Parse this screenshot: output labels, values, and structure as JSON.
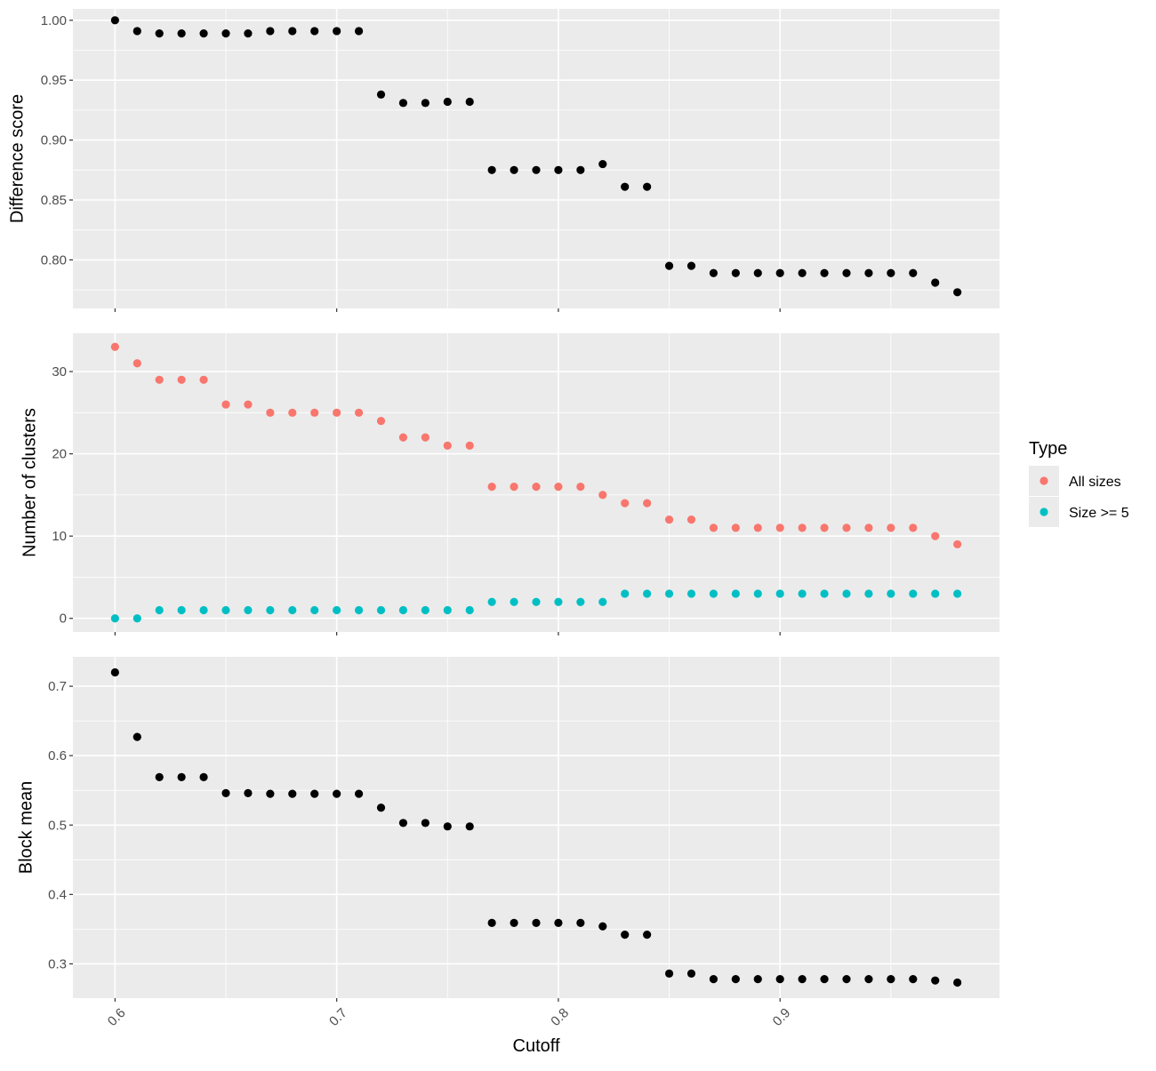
{
  "chart_data": {
    "type": "scatter",
    "xlabel": "Cutoff",
    "x_ticks": [
      "0.6",
      "0.7",
      "0.8",
      "0.9"
    ],
    "x_tick_values": [
      0.6,
      0.7,
      0.8,
      0.9
    ],
    "xlim": [
      0.581,
      0.999
    ],
    "grid": true,
    "legend": {
      "title": "Type",
      "placement": "right",
      "entries": [
        {
          "label": "All sizes",
          "color": "#F8766D"
        },
        {
          "label": "Size >= 5",
          "color": "#00BFC4"
        }
      ]
    },
    "panels": [
      {
        "ylabel": "Difference score",
        "ylim": [
          0.7595,
          1.0095
        ],
        "y_ticks": [
          "0.80",
          "0.85",
          "0.90",
          "0.95",
          "1.00"
        ],
        "y_tick_values": [
          0.8,
          0.85,
          0.9,
          0.95,
          1.0
        ],
        "series": [
          {
            "color": "#000000",
            "x": [
              0.6,
              0.61,
              0.62,
              0.63,
              0.64,
              0.65,
              0.66,
              0.67,
              0.68,
              0.69,
              0.7,
              0.71,
              0.72,
              0.73,
              0.74,
              0.75,
              0.76,
              0.77,
              0.78,
              0.79,
              0.8,
              0.81,
              0.82,
              0.83,
              0.84,
              0.85,
              0.86,
              0.87,
              0.88,
              0.89,
              0.9,
              0.91,
              0.92,
              0.93,
              0.94,
              0.95,
              0.96,
              0.97,
              0.98
            ],
            "y": [
              1.0,
              0.991,
              0.989,
              0.989,
              0.989,
              0.989,
              0.989,
              0.991,
              0.991,
              0.991,
              0.991,
              0.991,
              0.938,
              0.931,
              0.931,
              0.932,
              0.932,
              0.875,
              0.875,
              0.875,
              0.875,
              0.875,
              0.88,
              0.861,
              0.861,
              0.795,
              0.795,
              0.789,
              0.789,
              0.789,
              0.789,
              0.789,
              0.789,
              0.789,
              0.789,
              0.789,
              0.789,
              0.781,
              0.773
            ]
          }
        ]
      },
      {
        "ylabel": "Number of clusters",
        "ylim": [
          -1.65,
          34.65
        ],
        "y_ticks": [
          "0",
          "10",
          "20",
          "30"
        ],
        "y_tick_values": [
          0,
          10,
          20,
          30
        ],
        "series": [
          {
            "name": "All sizes",
            "color": "#F8766D",
            "x": [
              0.6,
              0.61,
              0.62,
              0.63,
              0.64,
              0.65,
              0.66,
              0.67,
              0.68,
              0.69,
              0.7,
              0.71,
              0.72,
              0.73,
              0.74,
              0.75,
              0.76,
              0.77,
              0.78,
              0.79,
              0.8,
              0.81,
              0.82,
              0.83,
              0.84,
              0.85,
              0.86,
              0.87,
              0.88,
              0.89,
              0.9,
              0.91,
              0.92,
              0.93,
              0.94,
              0.95,
              0.96,
              0.97,
              0.98
            ],
            "y": [
              33,
              31,
              29,
              29,
              29,
              26,
              26,
              25,
              25,
              25,
              25,
              25,
              24,
              22,
              22,
              21,
              21,
              16,
              16,
              16,
              16,
              16,
              15,
              14,
              14,
              12,
              12,
              11,
              11,
              11,
              11,
              11,
              11,
              11,
              11,
              11,
              11,
              10,
              9
            ]
          },
          {
            "name": "Size >= 5",
            "color": "#00BFC4",
            "x": [
              0.6,
              0.61,
              0.62,
              0.63,
              0.64,
              0.65,
              0.66,
              0.67,
              0.68,
              0.69,
              0.7,
              0.71,
              0.72,
              0.73,
              0.74,
              0.75,
              0.76,
              0.77,
              0.78,
              0.79,
              0.8,
              0.81,
              0.82,
              0.83,
              0.84,
              0.85,
              0.86,
              0.87,
              0.88,
              0.89,
              0.9,
              0.91,
              0.92,
              0.93,
              0.94,
              0.95,
              0.96,
              0.97,
              0.98
            ],
            "y": [
              0,
              0,
              1,
              1,
              1,
              1,
              1,
              1,
              1,
              1,
              1,
              1,
              1,
              1,
              1,
              1,
              1,
              2,
              2,
              2,
              2,
              2,
              2,
              3,
              3,
              3,
              3,
              3,
              3,
              3,
              3,
              3,
              3,
              3,
              3,
              3,
              3,
              3,
              3
            ]
          }
        ]
      },
      {
        "ylabel": "Block mean",
        "ylim": [
          0.2506,
          0.7424
        ],
        "y_ticks": [
          "0.3",
          "0.4",
          "0.5",
          "0.6",
          "0.7"
        ],
        "y_tick_values": [
          0.3,
          0.4,
          0.5,
          0.6,
          0.7
        ],
        "series": [
          {
            "color": "#000000",
            "x": [
              0.6,
              0.61,
              0.62,
              0.63,
              0.64,
              0.65,
              0.66,
              0.67,
              0.68,
              0.69,
              0.7,
              0.71,
              0.72,
              0.73,
              0.74,
              0.75,
              0.76,
              0.77,
              0.78,
              0.79,
              0.8,
              0.81,
              0.82,
              0.83,
              0.84,
              0.85,
              0.86,
              0.87,
              0.88,
              0.89,
              0.9,
              0.91,
              0.92,
              0.93,
              0.94,
              0.95,
              0.96,
              0.97,
              0.98
            ],
            "y": [
              0.72,
              0.627,
              0.569,
              0.569,
              0.569,
              0.546,
              0.546,
              0.545,
              0.545,
              0.545,
              0.545,
              0.545,
              0.525,
              0.503,
              0.503,
              0.498,
              0.498,
              0.359,
              0.359,
              0.359,
              0.359,
              0.359,
              0.354,
              0.342,
              0.342,
              0.286,
              0.286,
              0.278,
              0.278,
              0.278,
              0.278,
              0.278,
              0.278,
              0.278,
              0.278,
              0.278,
              0.278,
              0.276,
              0.273
            ]
          }
        ]
      }
    ]
  }
}
